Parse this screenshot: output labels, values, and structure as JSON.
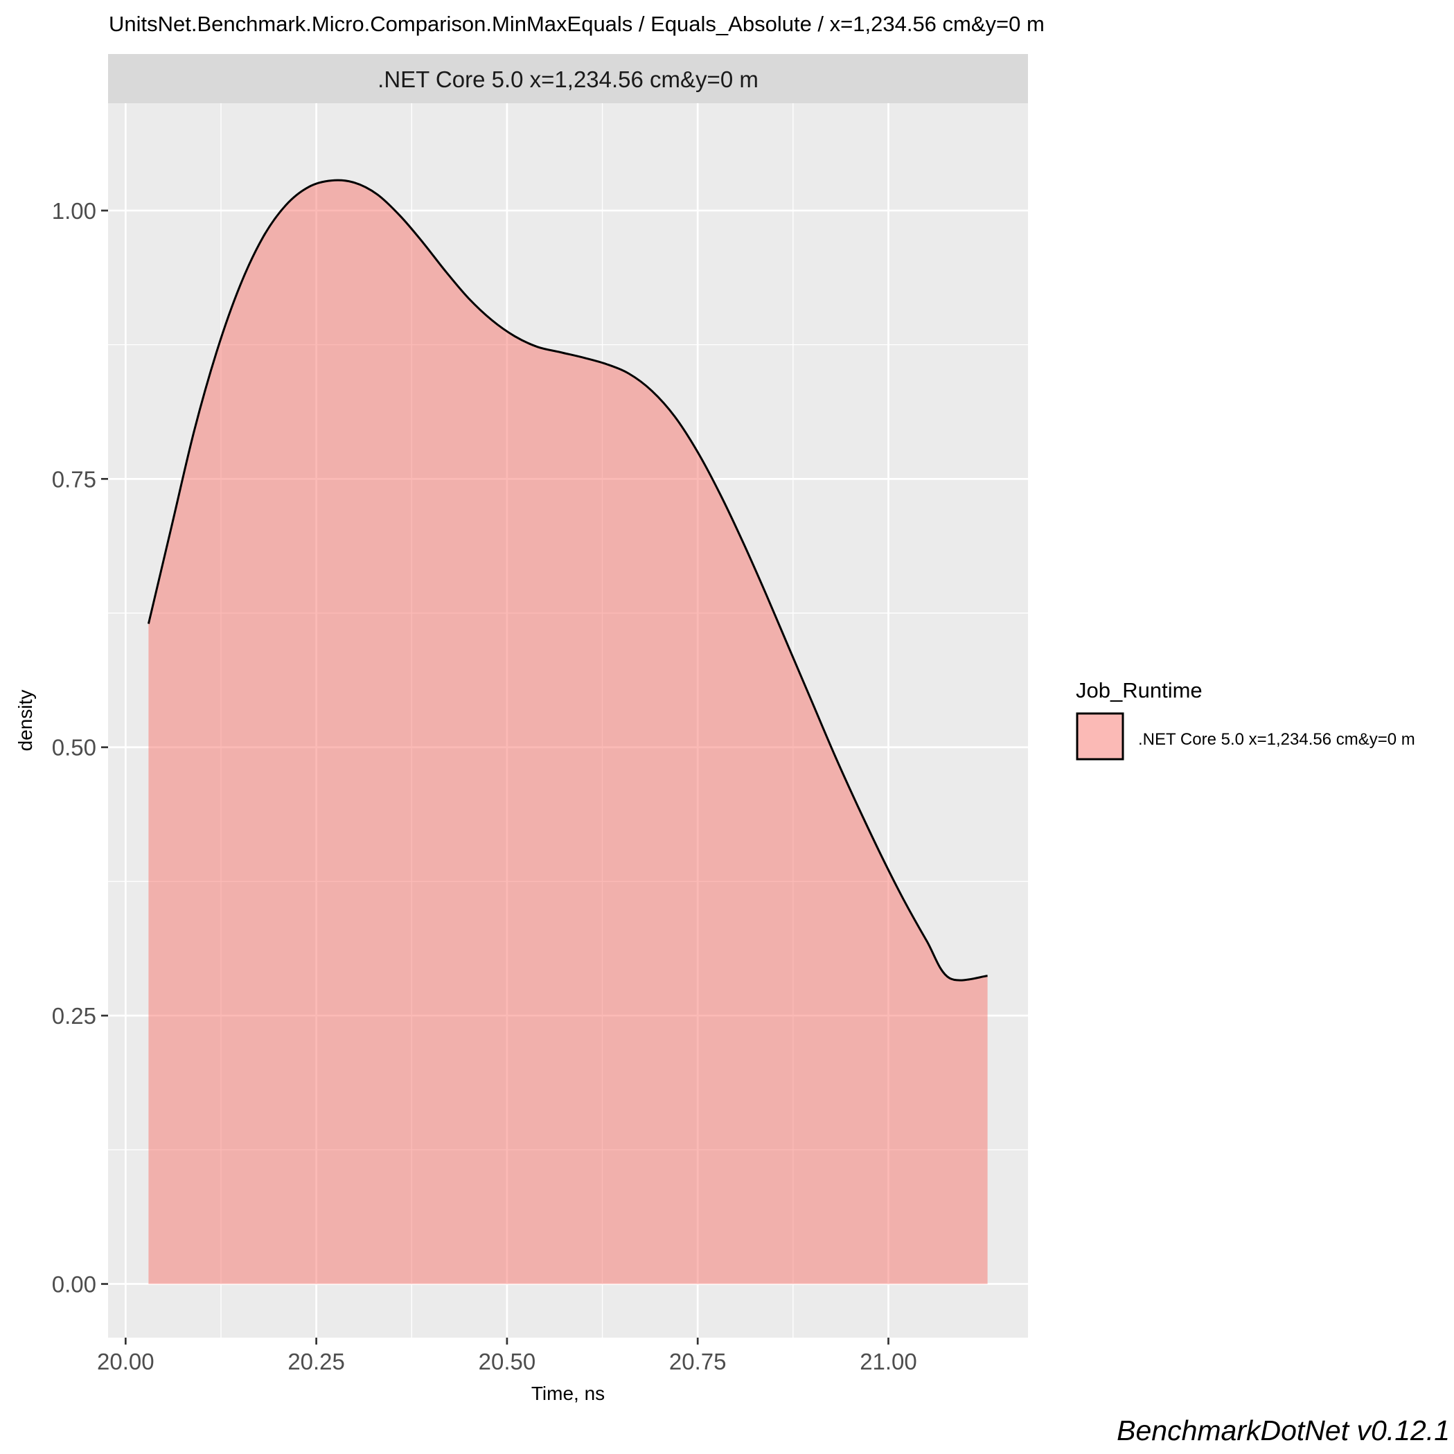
{
  "chart_data": {
    "type": "area",
    "title": "UnitsNet.Benchmark.Micro.Comparison.MinMaxEquals / Equals_Absolute / x=1,234.56 cm&y=0 m",
    "facet_label": ".NET Core 5.0 x=1,234.56 cm&y=0 m",
    "xlabel": "Time, ns",
    "ylabel": "density",
    "xlim": [
      19.977,
      21.183
    ],
    "ylim": [
      -0.05,
      1.1
    ],
    "x_ticks": [
      {
        "value": 20.0,
        "label": "20.00"
      },
      {
        "value": 20.25,
        "label": "20.25"
      },
      {
        "value": 20.5,
        "label": "20.50"
      },
      {
        "value": 20.75,
        "label": "20.75"
      },
      {
        "value": 21.0,
        "label": "21.00"
      }
    ],
    "y_ticks": [
      {
        "value": 0.0,
        "label": "0.00"
      },
      {
        "value": 0.25,
        "label": "0.25"
      },
      {
        "value": 0.5,
        "label": "0.50"
      },
      {
        "value": 0.75,
        "label": "0.75"
      },
      {
        "value": 1.0,
        "label": "1.00"
      }
    ],
    "grid": true,
    "legend": {
      "title": "Job_Runtime",
      "position": "right",
      "entries": [
        ".NET Core 5.0 x=1,234.56 cm&y=0 m"
      ]
    },
    "series": [
      {
        "name": ".NET Core 5.0 x=1,234.56 cm&y=0 m",
        "fill": "#F8766D",
        "fill_opacity": 0.5,
        "line_color": "#000000",
        "x": [
          20.03,
          20.06,
          20.09,
          20.12,
          20.15,
          20.18,
          20.21,
          20.24,
          20.27,
          20.3,
          20.33,
          20.36,
          20.39,
          20.42,
          20.45,
          20.48,
          20.51,
          20.54,
          20.57,
          20.6,
          20.63,
          20.66,
          20.69,
          20.72,
          20.75,
          20.78,
          20.81,
          20.84,
          20.87,
          20.9,
          20.93,
          20.96,
          20.99,
          21.02,
          21.05,
          21.08,
          21.13
        ],
        "y": [
          0.615,
          0.705,
          0.795,
          0.87,
          0.93,
          0.975,
          1.005,
          1.022,
          1.028,
          1.026,
          1.015,
          0.995,
          0.97,
          0.943,
          0.918,
          0.898,
          0.883,
          0.873,
          0.868,
          0.863,
          0.857,
          0.848,
          0.832,
          0.808,
          0.775,
          0.735,
          0.69,
          0.642,
          0.592,
          0.542,
          0.492,
          0.445,
          0.4,
          0.358,
          0.32,
          0.285,
          0.287
        ]
      }
    ]
  },
  "footer": {
    "credit": "BenchmarkDotNet v0.12.1"
  }
}
